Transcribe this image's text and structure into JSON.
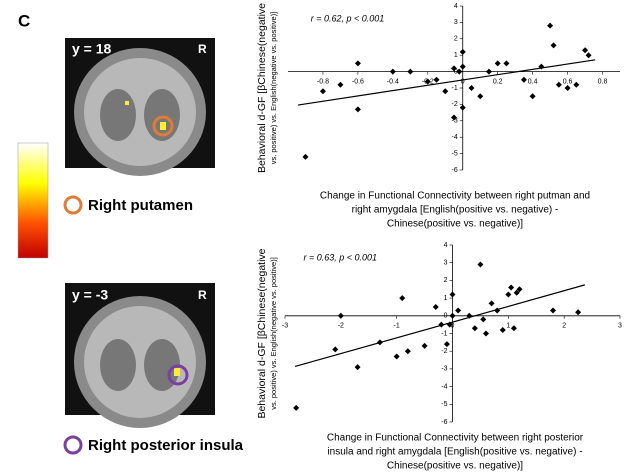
{
  "figure": {
    "panel_label": "C",
    "slices": [
      {
        "label": "y = 18",
        "side": "R",
        "region": "Right putamen"
      },
      {
        "label": "y = -3",
        "side": "R",
        "region": "Right posterior insula"
      }
    ]
  },
  "chart_data": [
    {
      "type": "scatter",
      "annotation": "r = 0.62, p < 0.001",
      "y_label": [
        "Behavioral d-GF [βChinese(negative",
        "vs. positive) vs. English(negative vs. positive)]"
      ],
      "x_label": [
        "Change in Functional Connectivity between right putman and",
        "right amygdala [English(positive vs. negative) -",
        "Chinese(positive vs. negative)]"
      ],
      "x": [
        -0.9,
        -0.8,
        -0.7,
        -0.6,
        -0.6,
        -0.4,
        -0.3,
        -0.2,
        -0.15,
        -0.1,
        -0.05,
        -0.02,
        -0.05,
        0,
        0,
        0,
        0.05,
        0.1,
        0.15,
        0.2,
        0.25,
        0.35,
        0.4,
        0.45,
        0.5,
        0.52,
        0.55,
        0.6,
        0.65,
        0.7,
        0.72
      ],
      "values": [
        -5.2,
        -1.2,
        -0.8,
        0.5,
        -2.3,
        0,
        0,
        -0.6,
        -0.5,
        -1.2,
        0.2,
        0,
        -2.8,
        -2.2,
        1.2,
        0.3,
        -1,
        -1.5,
        0,
        0.5,
        0.5,
        -0.5,
        -1.5,
        0.3,
        2.8,
        1.6,
        -0.8,
        -1,
        -0.8,
        1.3,
        1
      ],
      "color": "#000000",
      "xlim": [
        -1,
        0.9
      ],
      "xticks": [
        -0.8,
        -0.6,
        -0.4,
        -0.2,
        0,
        0.2,
        0.4,
        0.6,
        0.8
      ],
      "ylim": [
        -6,
        4
      ],
      "yticks": [
        -6,
        -5,
        -4,
        -3,
        -2,
        -1,
        0,
        1,
        2,
        3,
        4
      ]
    },
    {
      "type": "scatter",
      "annotation": "r = 0.63, p < 0.001",
      "y_label": [
        "Behavioral d-GF [βChinese(negative",
        "vs. positive) vs. English(negative vs. positive)]"
      ],
      "x_label": [
        "Change in Functional Connectivity between right posterior",
        "insula and right amygdala [English(positive vs. negative) -",
        "Chinese(positive vs. negative)]"
      ],
      "x": [
        -2.8,
        -2.1,
        -2,
        -1.7,
        -1.3,
        -1,
        -0.9,
        -0.8,
        -0.5,
        -0.3,
        -0.2,
        -0.1,
        -0.05,
        0,
        0,
        0.1,
        0.3,
        0.4,
        0.5,
        0.55,
        0.6,
        0.7,
        0.8,
        0.9,
        1.0,
        1.05,
        1.1,
        1.15,
        1.2,
        1.8,
        2.25
      ],
      "values": [
        -5.2,
        -1.9,
        0,
        -2.9,
        -1.5,
        -2.3,
        1,
        -2,
        -1.7,
        0.5,
        -0.5,
        -1.6,
        -0.5,
        1.2,
        0,
        0.3,
        0,
        -0.7,
        2.9,
        -0.2,
        -1,
        0.7,
        0.3,
        -0.8,
        1.2,
        1.6,
        -0.7,
        1.3,
        1.5,
        0.3,
        0.2
      ],
      "color": "#000000",
      "xlim": [
        -3,
        3
      ],
      "xticks": [
        -3,
        -2,
        -1,
        0,
        1,
        2,
        3
      ],
      "ylim": [
        -6,
        4
      ],
      "yticks": [
        -6,
        -5,
        -4,
        -3,
        -2,
        -1,
        0,
        1,
        2,
        3,
        4
      ]
    }
  ]
}
